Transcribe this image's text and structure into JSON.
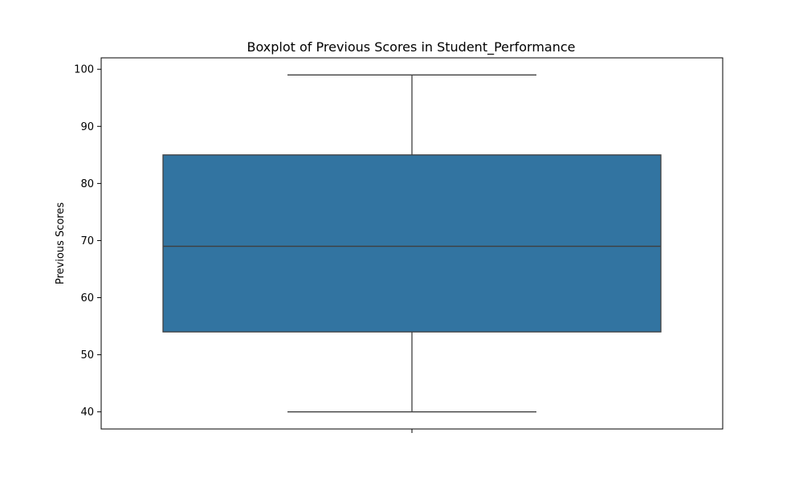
{
  "chart_data": {
    "type": "box",
    "title": "Boxplot of Previous Scores in Student_Performance",
    "xlabel": "",
    "ylabel": "Previous Scores",
    "ylim": [
      37,
      102
    ],
    "yticks": [
      40,
      50,
      60,
      70,
      80,
      90,
      100
    ],
    "grid": false,
    "box": {
      "whisker_low": 40,
      "q1": 54,
      "median": 69,
      "q3": 85,
      "whisker_high": 99
    },
    "colors": {
      "box_fill": "#3274a1",
      "line": "#3f3f3f",
      "axes": "#000000"
    }
  }
}
